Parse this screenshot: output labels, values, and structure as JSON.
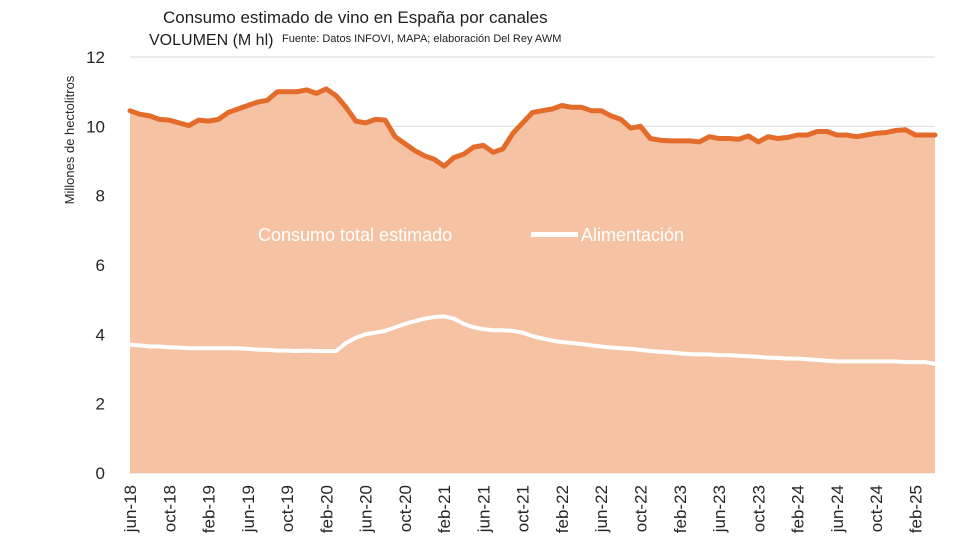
{
  "chart_data": {
    "type": "area",
    "title": "Consumo estimado de vino en España por canales",
    "subtitle": "VOLUMEN (M hl)",
    "source": "Fuente: Datos INFOVI, MAPA; elaboración Del Rey AWM",
    "ylabel": "Millones de hectolitros",
    "xlabel": "",
    "ylim": [
      0,
      12
    ],
    "yticks": [
      0,
      2,
      4,
      6,
      8,
      10,
      12
    ],
    "grid": true,
    "x_tick_labels": [
      "jun-18",
      "oct-18",
      "feb-19",
      "jun-19",
      "oct-19",
      "feb-20",
      "jun-20",
      "oct-20",
      "feb-21",
      "jun-21",
      "oct-21",
      "feb-22",
      "jun-22",
      "oct-22",
      "feb-23",
      "jun-23",
      "oct-23",
      "feb-24",
      "jun-24",
      "oct-24",
      "feb-25"
    ],
    "x_start": "jun-18",
    "x_end": "apr-25",
    "annotations": [
      {
        "text": "Consumo total estimado",
        "series": "Consumo total estimado"
      },
      {
        "text": "Alimentación",
        "series": "Alimentación"
      }
    ],
    "series": [
      {
        "name": "Consumo total estimado",
        "color": "#E46C2B",
        "fill": "#F6C2A4",
        "values": [
          10.45,
          10.35,
          10.3,
          10.2,
          10.18,
          10.1,
          10.02,
          10.18,
          10.15,
          10.2,
          10.4,
          10.5,
          10.6,
          10.7,
          10.75,
          11.0,
          11.0,
          11.0,
          11.05,
          10.95,
          11.08,
          10.88,
          10.55,
          10.15,
          10.1,
          10.2,
          10.18,
          9.7,
          9.5,
          9.3,
          9.15,
          9.05,
          8.85,
          9.1,
          9.2,
          9.4,
          9.45,
          9.25,
          9.35,
          9.8,
          10.1,
          10.4,
          10.45,
          10.5,
          10.6,
          10.55,
          10.55,
          10.45,
          10.45,
          10.3,
          10.2,
          9.95,
          10.0,
          9.65,
          9.6,
          9.58,
          9.58,
          9.58,
          9.55,
          9.7,
          9.65,
          9.65,
          9.63,
          9.72,
          9.55,
          9.7,
          9.65,
          9.68,
          9.75,
          9.75,
          9.85,
          9.85,
          9.75,
          9.75,
          9.7,
          9.75,
          9.8,
          9.82,
          9.88,
          9.9,
          9.75,
          9.75,
          9.75
        ]
      },
      {
        "name": "Alimentación",
        "color": "#FFFFFF",
        "values": [
          3.7,
          3.68,
          3.65,
          3.65,
          3.63,
          3.62,
          3.6,
          3.6,
          3.6,
          3.6,
          3.6,
          3.6,
          3.58,
          3.56,
          3.55,
          3.53,
          3.53,
          3.52,
          3.53,
          3.52,
          3.52,
          3.52,
          3.75,
          3.9,
          4.0,
          4.05,
          4.1,
          4.2,
          4.3,
          4.38,
          4.45,
          4.5,
          4.52,
          4.45,
          4.3,
          4.2,
          4.15,
          4.12,
          4.12,
          4.1,
          4.05,
          3.95,
          3.88,
          3.82,
          3.78,
          3.75,
          3.72,
          3.68,
          3.65,
          3.62,
          3.6,
          3.58,
          3.55,
          3.52,
          3.5,
          3.48,
          3.45,
          3.43,
          3.42,
          3.42,
          3.4,
          3.4,
          3.38,
          3.37,
          3.35,
          3.33,
          3.32,
          3.3,
          3.3,
          3.28,
          3.26,
          3.24,
          3.22,
          3.22,
          3.22,
          3.22,
          3.22,
          3.22,
          3.22,
          3.2,
          3.2,
          3.2,
          3.15
        ]
      }
    ]
  }
}
